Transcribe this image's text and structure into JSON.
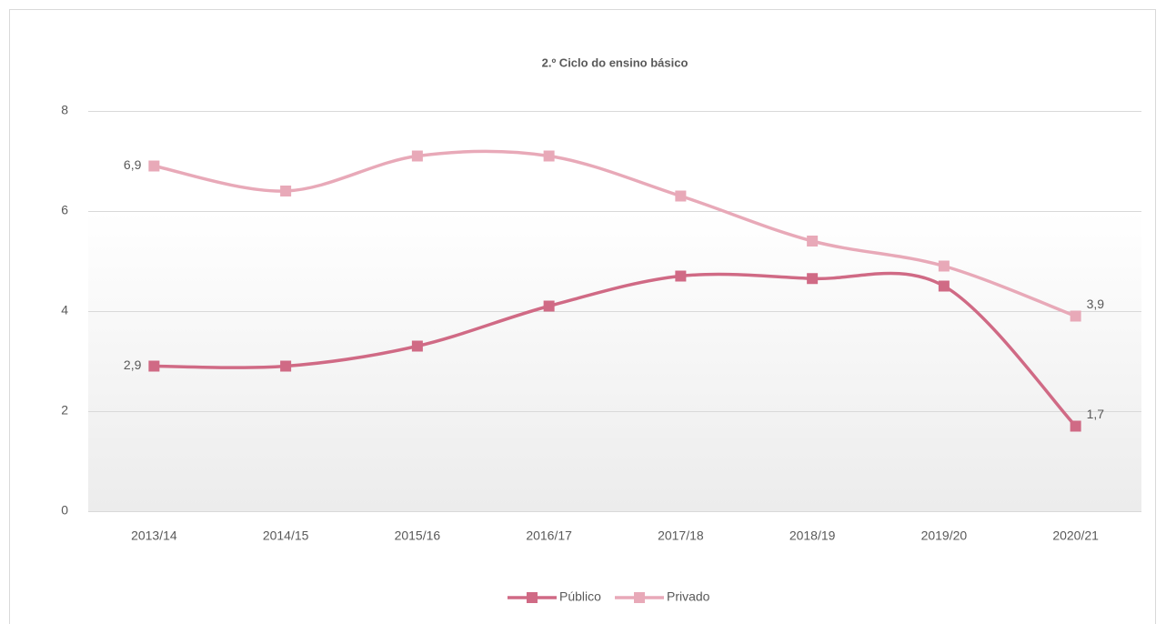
{
  "chart_data": {
    "type": "line",
    "title": "2.º Ciclo do ensino básico",
    "categories": [
      "2013/14",
      "2014/15",
      "2015/16",
      "2016/17",
      "2017/18",
      "2018/19",
      "2019/20",
      "2020/21"
    ],
    "series": [
      {
        "name": "Público",
        "color": "#d06a85",
        "values": [
          2.9,
          2.9,
          3.3,
          4.1,
          4.7,
          4.65,
          4.5,
          1.7
        ],
        "value_labels": [
          "2,9",
          null,
          null,
          null,
          null,
          null,
          null,
          "1,7"
        ]
      },
      {
        "name": "Privado",
        "color": "#e8a9b8",
        "values": [
          6.9,
          6.4,
          7.1,
          7.1,
          6.3,
          5.4,
          4.9,
          3.9
        ],
        "value_labels": [
          "6,9",
          null,
          null,
          null,
          null,
          null,
          null,
          "3,9"
        ]
      }
    ],
    "ylim": [
      0,
      8
    ],
    "yticks": [
      0,
      2,
      4,
      6,
      8
    ],
    "grid": true,
    "smooth": true,
    "legend": "bottom"
  }
}
